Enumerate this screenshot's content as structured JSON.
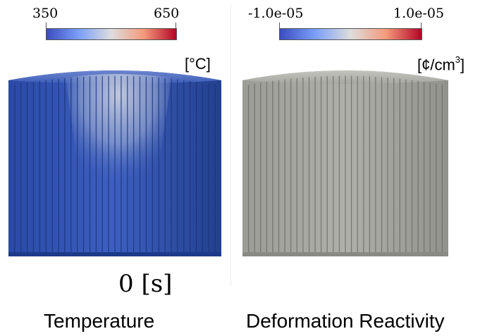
{
  "panels": {
    "temperature": {
      "colorbar_min": "350",
      "colorbar_max": "650",
      "unit": "[°C]",
      "caption": "Temperature",
      "colors": {
        "low": "#3b4cc0",
        "high": "#b40426",
        "render": "#2e4ea8"
      }
    },
    "deformation": {
      "colorbar_min": "-1.0e-05",
      "colorbar_max": "1.0e-05",
      "unit_base": "[¢/cm",
      "unit_exp": "3",
      "unit_close": "]",
      "caption": "Deformation Reactivity",
      "colors": {
        "render": "#a8a8a2"
      }
    }
  },
  "time_label": "0 [s]"
}
